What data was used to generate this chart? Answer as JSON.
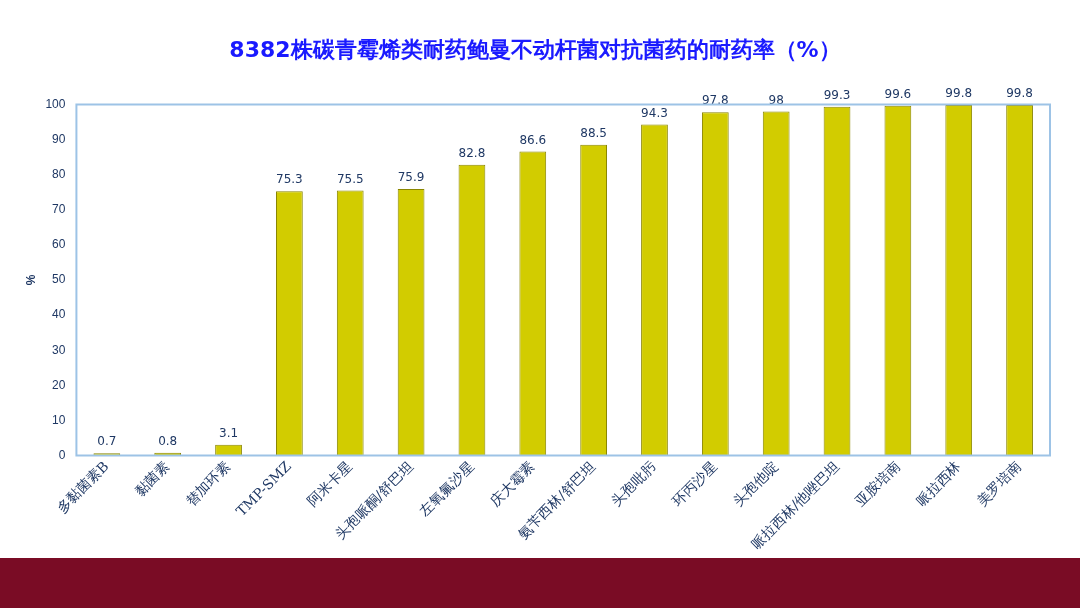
{
  "chart_data": {
    "type": "bar",
    "title": "8382株碳青霉烯类耐药鲍曼不动杆菌对抗菌药的耐药率（%）",
    "ylabel": "%",
    "categories": [
      "多黏菌素B",
      "黏菌素",
      "替加环素",
      "TMP-SMZ",
      "阿米卡星",
      "头孢哌酮/舒巴坦",
      "左氧氟沙星",
      "庆大霉素",
      "氨苄西林/舒巴坦",
      "头孢吡肟",
      "环丙沙星",
      "头孢他啶",
      "哌拉西林/他唑巴坦",
      "亚胺培南",
      "哌拉西林",
      "美罗培南"
    ],
    "values": [
      0.7,
      0.8,
      3.1,
      75.3,
      75.5,
      75.9,
      82.8,
      86.6,
      88.5,
      94.3,
      97.8,
      98,
      99.3,
      99.6,
      99.8,
      99.8
    ],
    "color": "#d2cc00",
    "ylim": [
      0,
      100
    ],
    "yticks": [
      0,
      10,
      20,
      30,
      40,
      50,
      60,
      70,
      80,
      90,
      100
    ],
    "grid": false,
    "data_labels": true
  }
}
